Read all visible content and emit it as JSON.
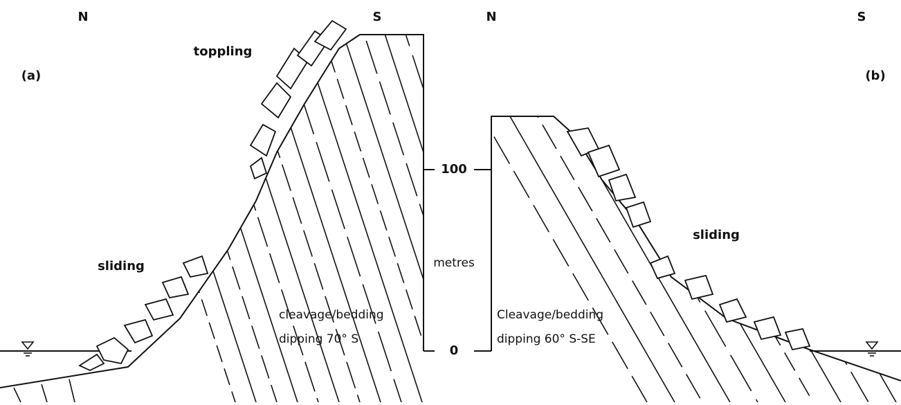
{
  "labels": {
    "north_a": "N",
    "south_a": "S",
    "north_b": "N",
    "south_b": "S",
    "panel_a": "(a)",
    "panel_b": "(b)",
    "toppling": "toppling",
    "sliding_a": "sliding",
    "sliding_b": "sliding",
    "scale_unit": "metres",
    "scale_top": "100",
    "scale_bottom": "0",
    "note_a_line1": "cleavage/bedding",
    "note_a_line2": "dipping 70° S",
    "note_b_line1": "Cleavage/bedding",
    "note_b_line2": "dipping 60° S-SE"
  }
}
